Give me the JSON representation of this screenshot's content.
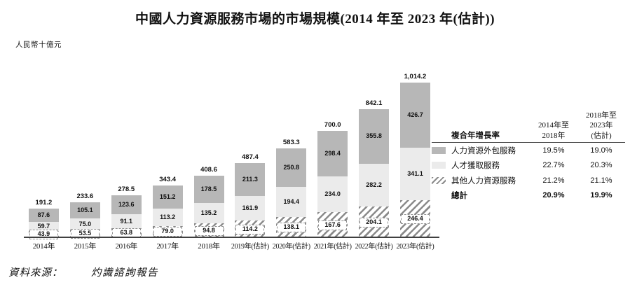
{
  "title": "中國人力資源服務市場的市場規模(2014 年至 2023 年(估計))",
  "unit_label": "人民幣十億元",
  "source": {
    "prefix": "資料來源：",
    "text": "灼識諮詢報告"
  },
  "colors": {
    "bar_dark": "#b7b7b7",
    "bar_light": "#ebebeb",
    "hatch_stripe": "#8a8a8a",
    "axis": "#404040"
  },
  "chart_data": {
    "type": "bar",
    "stacked": true,
    "title": "中國人力資源服務市場的市場規模(2014 年至 2023 年(估計))",
    "ylabel": "人民幣十億元",
    "legend_position": "right",
    "grid": false,
    "categories": [
      "2014年",
      "2015年",
      "2016年",
      "2017年",
      "2018年",
      "2019年(估計)",
      "2020年(估計)",
      "2021年(估計)",
      "2022年(估計)",
      "2023年(估計)"
    ],
    "series": [
      {
        "name": "人力資源外包服務",
        "style": "dark",
        "values": [
          87.6,
          105.1,
          123.6,
          151.2,
          178.5,
          211.3,
          250.8,
          298.4,
          355.8,
          426.7
        ]
      },
      {
        "name": "人才獲取服務",
        "style": "light",
        "values": [
          59.7,
          75.0,
          91.1,
          113.2,
          135.2,
          161.9,
          194.4,
          234.0,
          282.2,
          341.1
        ]
      },
      {
        "name": "其他人力資源服務",
        "style": "hatch",
        "values": [
          43.9,
          53.5,
          63.8,
          79.0,
          94.8,
          114.2,
          138.1,
          167.6,
          204.1,
          246.4
        ]
      }
    ],
    "totals": [
      "191.2",
      "233.6",
      "278.5",
      "343.4",
      "408.6",
      "487.4",
      "583.3",
      "700.0",
      "842.1",
      "1,014.2"
    ]
  },
  "legend": {
    "header": {
      "col0": "複合年增長率",
      "col1": "2014年至\n2018年",
      "col2": "2018年至\n2023年\n(估計)"
    },
    "rows": [
      {
        "label": "人力資源外包服務",
        "swatch": "dark",
        "v1": "19.5%",
        "v2": "19.0%",
        "bold": false
      },
      {
        "label": "人才獲取服務",
        "swatch": "light",
        "v1": "22.7%",
        "v2": "20.3%",
        "bold": false
      },
      {
        "label": "其他人力資源服務",
        "swatch": "hatch",
        "v1": "21.2%",
        "v2": "21.1%",
        "bold": false
      },
      {
        "label": "總計",
        "swatch": "none",
        "v1": "20.9%",
        "v2": "19.9%",
        "bold": true
      }
    ]
  }
}
